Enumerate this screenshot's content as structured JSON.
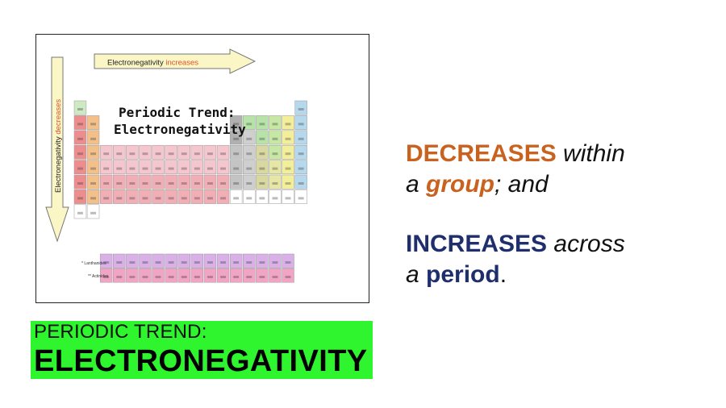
{
  "figure": {
    "arrow_top_prefix": "Electronegativity ",
    "arrow_top_highlight": "increases",
    "arrow_left_prefix": "Electronegativity ",
    "arrow_left_highlight": "decreases",
    "heading_line1": "Periodic Trend:",
    "heading_line2": "Electronegativity",
    "lanthanides_label": "* Lanthanides",
    "actinides_label": "** Actinides",
    "highlight_color": "#e0502a",
    "arrow_fill": "#fbf6c6"
  },
  "title": {
    "line1": "PERIODIC TREND:",
    "line2": "ELECTRONEGATIVITY",
    "background": "#2ef52e"
  },
  "statements": {
    "decreases": {
      "keyword": "DECREASES",
      "word1": " within",
      "prefix": "a ",
      "keyword2": "group",
      "suffix": "; and"
    },
    "increases": {
      "keyword": "INCREASES",
      "word1": " across",
      "prefix": "a ",
      "keyword2": "period",
      "suffix": "."
    },
    "colors": {
      "orange": "#c8621e",
      "navy": "#1f2f6e"
    }
  }
}
